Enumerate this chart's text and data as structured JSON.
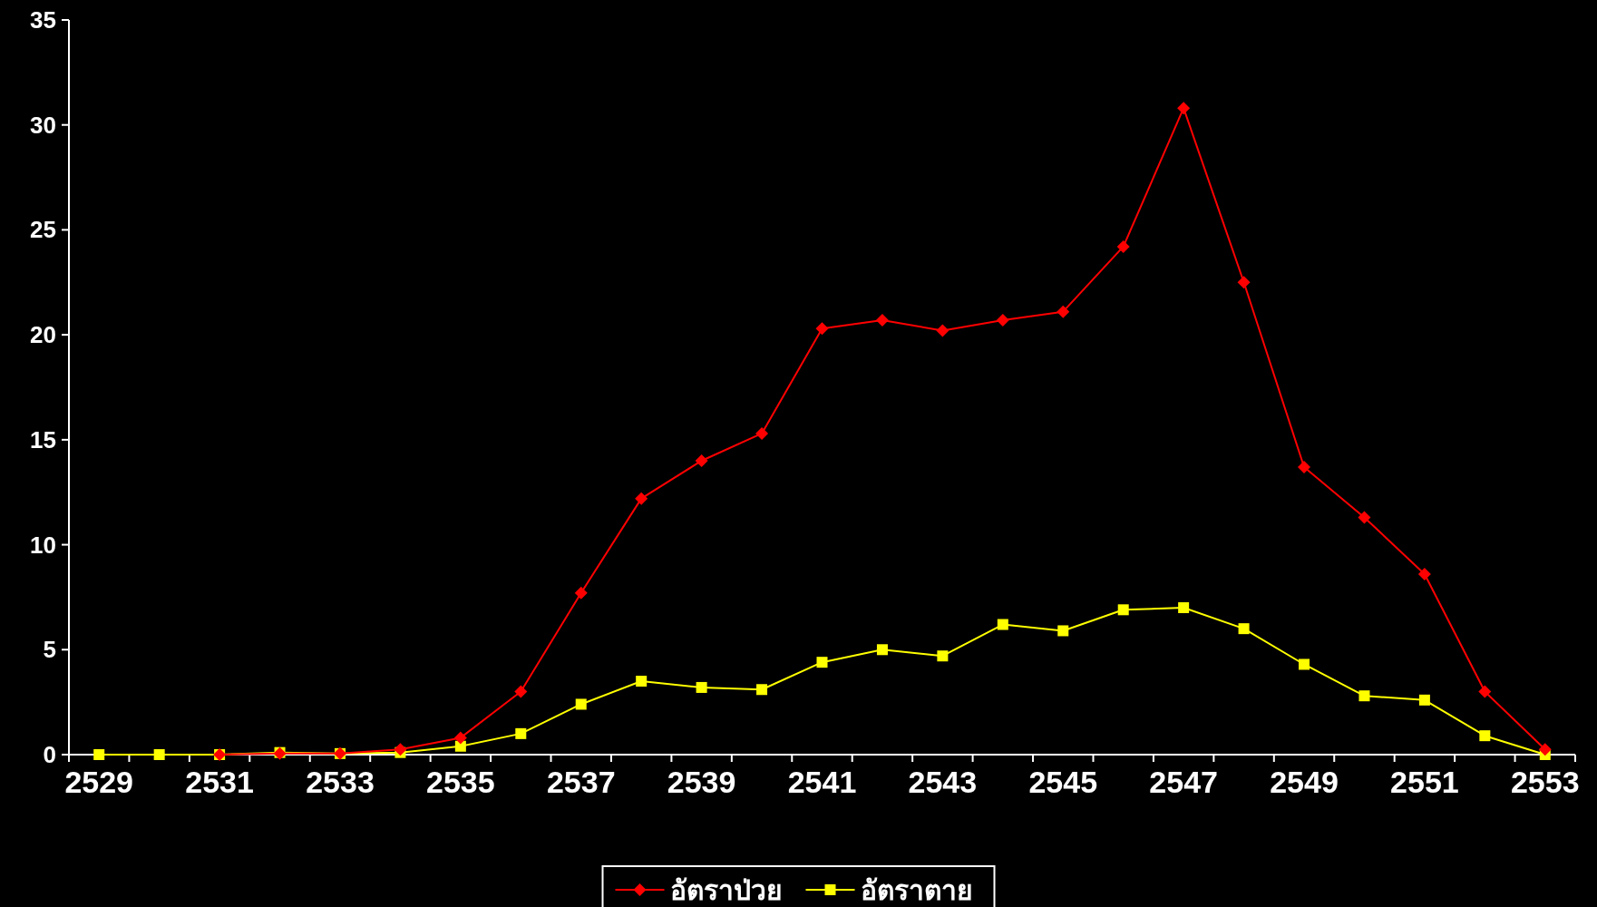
{
  "chart_data": {
    "type": "line",
    "categories": [
      "2529",
      null,
      "2531",
      null,
      "2533",
      null,
      "2535",
      null,
      "2537",
      null,
      "2539",
      null,
      "2541",
      null,
      "2543",
      null,
      "2545",
      null,
      "2547",
      null,
      "2549",
      null,
      "2551",
      null,
      "2553"
    ],
    "series": [
      {
        "name": "อัตราป่วย",
        "color": "#ff0000",
        "marker": "diamond",
        "values": [
          null,
          null,
          0,
          0.05,
          0.05,
          0.25,
          0.8,
          3.0,
          7.7,
          12.2,
          14.0,
          15.3,
          20.3,
          20.7,
          20.2,
          20.7,
          21.1,
          24.2,
          30.8,
          22.5,
          13.7,
          11.3,
          8.6,
          3.0,
          0.25
        ]
      },
      {
        "name": "อัตราตาย",
        "color": "#ffff00",
        "marker": "square",
        "values": [
          0,
          0,
          0,
          0.1,
          0.05,
          0.1,
          0.4,
          1.0,
          2.4,
          3.5,
          3.2,
          3.1,
          4.4,
          5.0,
          4.7,
          6.2,
          5.9,
          6.9,
          7.0,
          6.0,
          4.3,
          2.8,
          2.6,
          0.9,
          0.0
        ]
      }
    ],
    "ylim": [
      0,
      35
    ],
    "yticks": [
      0,
      5,
      10,
      15,
      20,
      25,
      30,
      35
    ],
    "legend": "bottom"
  }
}
